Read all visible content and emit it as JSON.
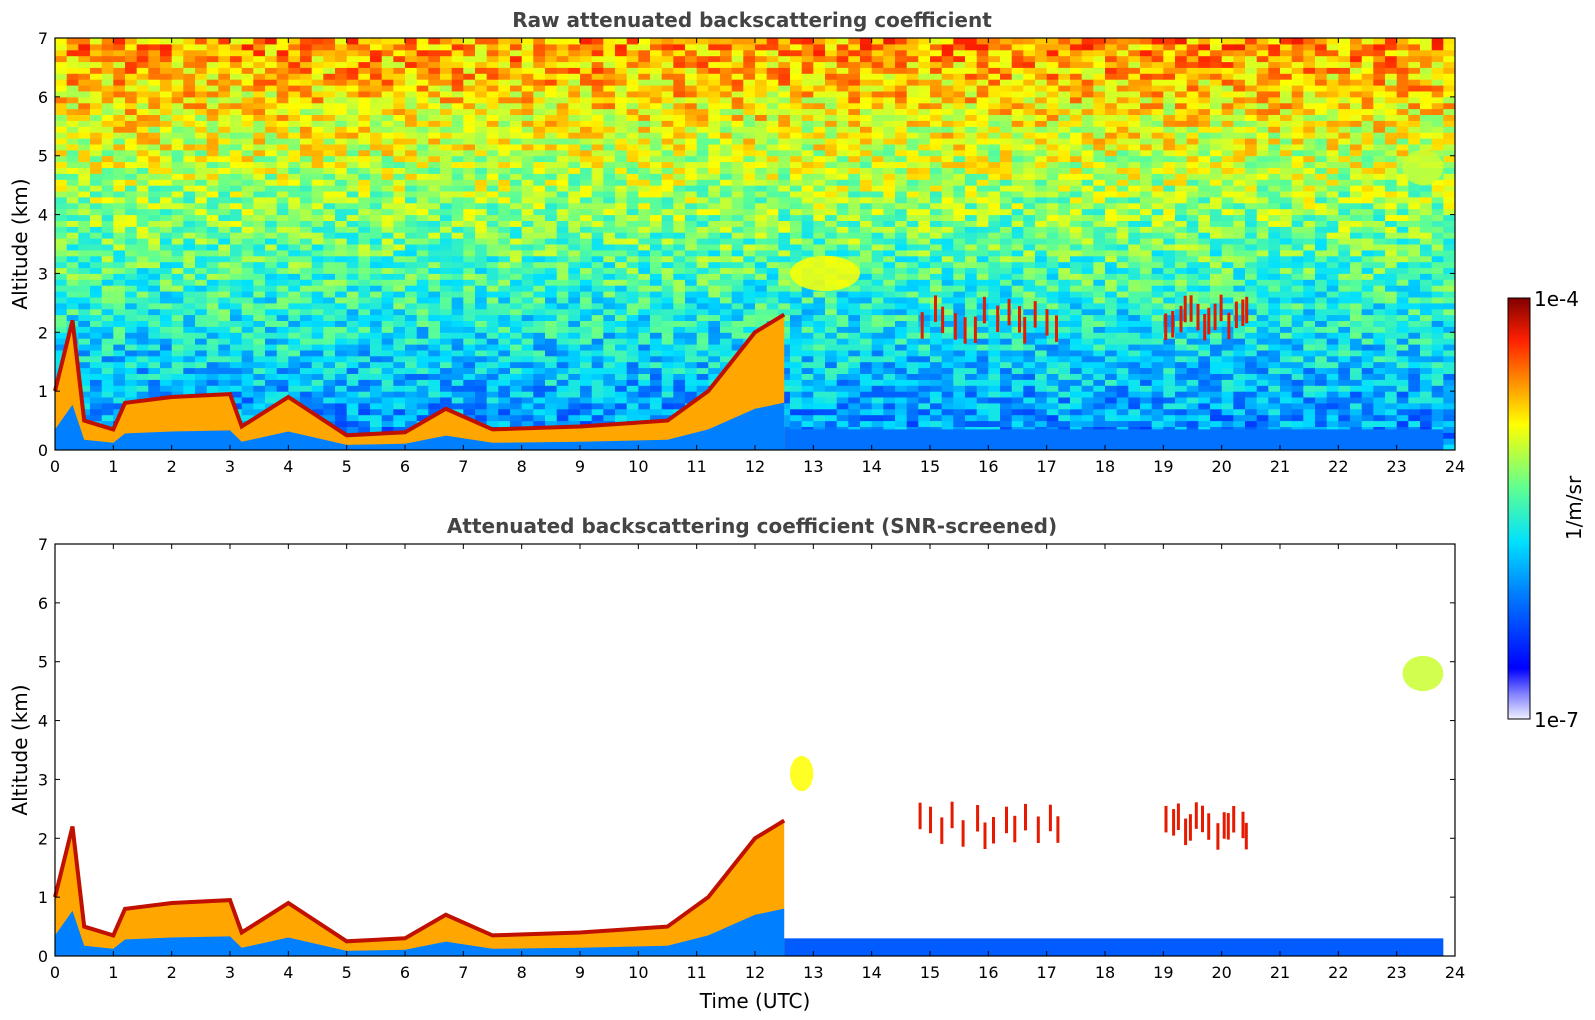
{
  "chart_data": [
    {
      "type": "heatmap",
      "title": "Raw attenuated backscattering coefficient",
      "xlabel": "",
      "ylabel": "Altitude (km)",
      "xlim": [
        0,
        24
      ],
      "ylim": [
        0,
        7
      ],
      "x_ticks": [
        0,
        1,
        2,
        3,
        4,
        5,
        6,
        7,
        8,
        9,
        10,
        11,
        12,
        13,
        14,
        15,
        16,
        17,
        18,
        19,
        20,
        21,
        22,
        23,
        24
      ],
      "y_ticks": [
        0,
        1,
        2,
        3,
        4,
        5,
        6,
        7
      ],
      "x_tick_labels": [
        "0",
        "1",
        "2",
        "3",
        "4",
        "5",
        "6",
        "7",
        "8",
        "9",
        "10",
        "11",
        "12",
        "13",
        "14",
        "15",
        "16",
        "17",
        "18",
        "19",
        "20",
        "21",
        "22",
        "23",
        "24"
      ],
      "y_tick_labels": [
        "0",
        "1",
        "2",
        "3",
        "4",
        "5",
        "6",
        "7"
      ],
      "features": [
        {
          "kind": "boundary_layer",
          "points": [
            [
              0,
              1.0
            ],
            [
              0.3,
              2.2
            ],
            [
              0.5,
              0.5
            ],
            [
              1,
              0.35
            ],
            [
              1.2,
              0.8
            ],
            [
              2,
              0.9
            ],
            [
              3,
              0.95
            ],
            [
              3.2,
              0.4
            ],
            [
              4,
              0.9
            ],
            [
              5,
              0.25
            ],
            [
              6,
              0.3
            ],
            [
              6.7,
              0.7
            ],
            [
              7.5,
              0.35
            ],
            [
              9,
              0.4
            ],
            [
              10.5,
              0.5
            ],
            [
              11.2,
              1.0
            ],
            [
              12,
              2.0
            ],
            [
              12.5,
              2.3
            ]
          ],
          "level": 0.95
        },
        {
          "kind": "cloud_patches",
          "time_range": [
            14.8,
            17.3
          ],
          "altitude": 2.2,
          "level": 0.92
        },
        {
          "kind": "cloud_patches",
          "time_range": [
            19.0,
            20.5
          ],
          "altitude": 2.2,
          "level": 0.92
        },
        {
          "kind": "aerosol_layer",
          "time_range": [
            12.6,
            13.8
          ],
          "altitude": 3.0,
          "level": 0.7
        },
        {
          "kind": "elevated_layer",
          "time_range": [
            23.1,
            23.8
          ],
          "altitude": 4.8,
          "level": 0.65
        },
        {
          "kind": "near_surface_layer",
          "time_range": [
            11.5,
            23.8
          ],
          "altitude": 0.35,
          "level": 0.28
        },
        {
          "kind": "noise_background",
          "low_altitude_level": 0.3,
          "high_altitude_level": 0.8
        }
      ]
    },
    {
      "type": "heatmap",
      "title": "Attenuated backscattering coefficient (SNR-screened)",
      "xlabel": "Time (UTC)",
      "ylabel": "Altitude (km)",
      "xlim": [
        0,
        24
      ],
      "ylim": [
        0,
        7
      ],
      "x_ticks": [
        0,
        1,
        2,
        3,
        4,
        5,
        6,
        7,
        8,
        9,
        10,
        11,
        12,
        13,
        14,
        15,
        16,
        17,
        18,
        19,
        20,
        21,
        22,
        23,
        24
      ],
      "y_ticks": [
        0,
        1,
        2,
        3,
        4,
        5,
        6,
        7
      ],
      "x_tick_labels": [
        "0",
        "1",
        "2",
        "3",
        "4",
        "5",
        "6",
        "7",
        "8",
        "9",
        "10",
        "11",
        "12",
        "13",
        "14",
        "15",
        "16",
        "17",
        "18",
        "19",
        "20",
        "21",
        "22",
        "23",
        "24"
      ],
      "y_tick_labels": [
        "0",
        "1",
        "2",
        "3",
        "4",
        "5",
        "6",
        "7"
      ],
      "features": [
        {
          "kind": "boundary_layer",
          "points": [
            [
              0,
              1.0
            ],
            [
              0.3,
              2.2
            ],
            [
              0.5,
              0.5
            ],
            [
              1,
              0.35
            ],
            [
              1.2,
              0.8
            ],
            [
              2,
              0.9
            ],
            [
              3,
              0.95
            ],
            [
              3.2,
              0.4
            ],
            [
              4,
              0.9
            ],
            [
              5,
              0.25
            ],
            [
              6,
              0.3
            ],
            [
              6.7,
              0.7
            ],
            [
              7.5,
              0.35
            ],
            [
              9,
              0.4
            ],
            [
              10.5,
              0.5
            ],
            [
              11.2,
              1.0
            ],
            [
              12,
              2.0
            ],
            [
              12.5,
              2.3
            ]
          ],
          "level": 0.95
        },
        {
          "kind": "cloud_patches",
          "time_range": [
            14.8,
            17.3
          ],
          "altitude": 2.2,
          "level": 0.92
        },
        {
          "kind": "cloud_patches",
          "time_range": [
            19.0,
            20.5
          ],
          "altitude": 2.2,
          "level": 0.92
        },
        {
          "kind": "aerosol_layer",
          "time_range": [
            12.6,
            13.0
          ],
          "altitude": 3.1,
          "level": 0.7
        },
        {
          "kind": "elevated_layer",
          "time_range": [
            23.1,
            23.8
          ],
          "altitude": 4.8,
          "level": 0.65
        },
        {
          "kind": "near_surface_layer",
          "time_range": [
            11.5,
            23.8
          ],
          "altitude": 0.3,
          "level": 0.25
        }
      ]
    }
  ],
  "colorbar": {
    "label": "1/m/sr",
    "max_label": "1e-4",
    "min_label": "1e-7",
    "scale": "log",
    "range": [
      1e-07,
      0.0001
    ],
    "colormap": "jet"
  }
}
